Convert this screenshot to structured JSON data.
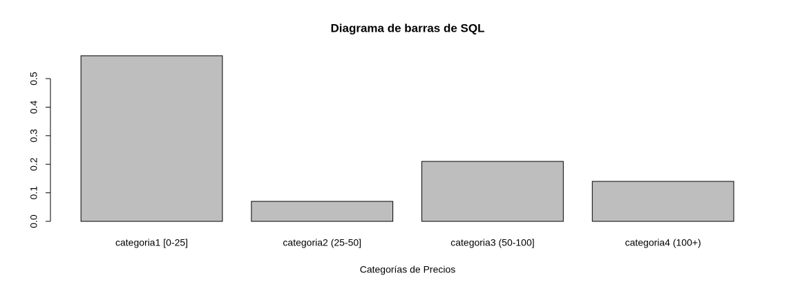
{
  "chart_data": {
    "type": "bar",
    "title": "Diagrama de barras de SQL",
    "x_label": "Categorías de Precios",
    "categories": [
      "categoria1 [0-25]",
      "categoria2 (25-50]",
      "categoria3 (50-100]",
      "categoria4 (100+)"
    ],
    "values": [
      0.58,
      0.07,
      0.21,
      0.14
    ],
    "color": "#bebebe",
    "ylim": [
      0,
      0.6
    ],
    "yticks": [
      {
        "value": 0,
        "label": "0.0"
      },
      0.1,
      0.2,
      0.3,
      0.4,
      0.5
    ],
    "grid": false
  }
}
